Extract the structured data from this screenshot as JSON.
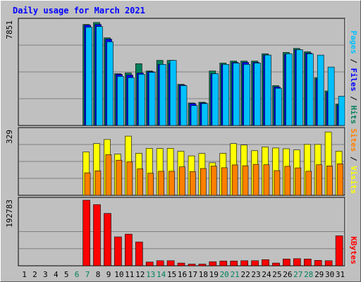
{
  "title": "Daily usage for March 2021",
  "colors": {
    "title": "#0000ff",
    "hits": "#00805c",
    "files": "#0000ff",
    "pages": "#00c0ff",
    "visits": "#ffff00",
    "sites": "#ff8000",
    "kbytes": "#ff0000",
    "weekend": "#00805c",
    "weekday": "#000000"
  },
  "chart_data": {
    "type": "bar",
    "title": "Daily usage for March 2021",
    "categories": [
      "1",
      "2",
      "3",
      "4",
      "5",
      "6",
      "7",
      "8",
      "9",
      "10",
      "11",
      "12",
      "13",
      "14",
      "15",
      "16",
      "17",
      "18",
      "19",
      "20",
      "21",
      "22",
      "23",
      "24",
      "25",
      "26",
      "27",
      "28",
      "29",
      "30",
      "31"
    ],
    "weekend_days": [
      "6",
      "7",
      "13",
      "14",
      "20",
      "21",
      "27",
      "28"
    ],
    "panels": [
      {
        "name": "top",
        "ymax_label": "7851",
        "ymax": 7851,
        "legend": [
          "Pages",
          "Files",
          "Hits"
        ],
        "series": [
          {
            "name": "Hits",
            "values": [
              0,
              0,
              0,
              0,
              0,
              0,
              7600,
              7750,
              6600,
              3900,
              3950,
              4650,
              4100,
              4900,
              4900,
              3100,
              1700,
              1750,
              4100,
              4700,
              4850,
              4850,
              4850,
              5400,
              3000,
              5500,
              5800,
              5550,
              3600,
              2600,
              1620
            ]
          },
          {
            "name": "Files",
            "values": [
              0,
              0,
              0,
              0,
              0,
              0,
              7550,
              7600,
              6500,
              3850,
              3800,
              3950,
              4050,
              4600,
              4650,
              3050,
              1650,
              1700,
              3900,
              4600,
              4750,
              4750,
              4750,
              5300,
              2900,
              5350,
              5700,
              5450,
              3500,
              2500,
              1530
            ]
          },
          {
            "name": "Pages",
            "values": [
              0,
              0,
              0,
              0,
              0,
              0,
              7400,
              7450,
              6300,
              3700,
              3600,
              3850,
              4000,
              4600,
              4900,
              3000,
              1500,
              1650,
              3900,
              4600,
              4700,
              4600,
              4700,
              5300,
              2800,
              5400,
              5700,
              5400,
              5300,
              4400,
              2200
            ]
          }
        ]
      },
      {
        "name": "middle",
        "ymax_label": "329",
        "ymax": 329,
        "legend": [
          "Sites",
          "Visits"
        ],
        "series": [
          {
            "name": "Visits",
            "values": [
              0,
              0,
              0,
              0,
              0,
              0,
              220,
              262,
              283,
              209,
              300,
              213,
              238,
              237,
              238,
              223,
              200,
              212,
              165,
              213,
              262,
              255,
              226,
              245,
              240,
              236,
              230,
              258,
              258,
              321,
              224
            ]
          },
          {
            "name": "Sites",
            "values": [
              0,
              0,
              0,
              0,
              0,
              0,
              114,
              124,
              206,
              178,
              170,
              134,
              112,
              122,
              122,
              144,
              120,
              136,
              148,
              140,
              154,
              150,
              157,
              155,
              125,
              147,
              139,
              122,
              155,
              149,
              160
            ]
          }
        ]
      },
      {
        "name": "bottom",
        "ymax_label": "192783",
        "ymax": 192783,
        "legend": [
          "KBytes"
        ],
        "series": [
          {
            "name": "KBytes",
            "values": [
              0,
              0,
              0,
              0,
              0,
              0,
              192783,
              180000,
              154000,
              85000,
              93000,
              70000,
              11000,
              15000,
              15000,
              8000,
              5000,
              5000,
              12000,
              14000,
              14000,
              15000,
              15000,
              18000,
              8000,
              20000,
              21000,
              20000,
              16000,
              15000,
              88000
            ]
          }
        ]
      }
    ]
  }
}
